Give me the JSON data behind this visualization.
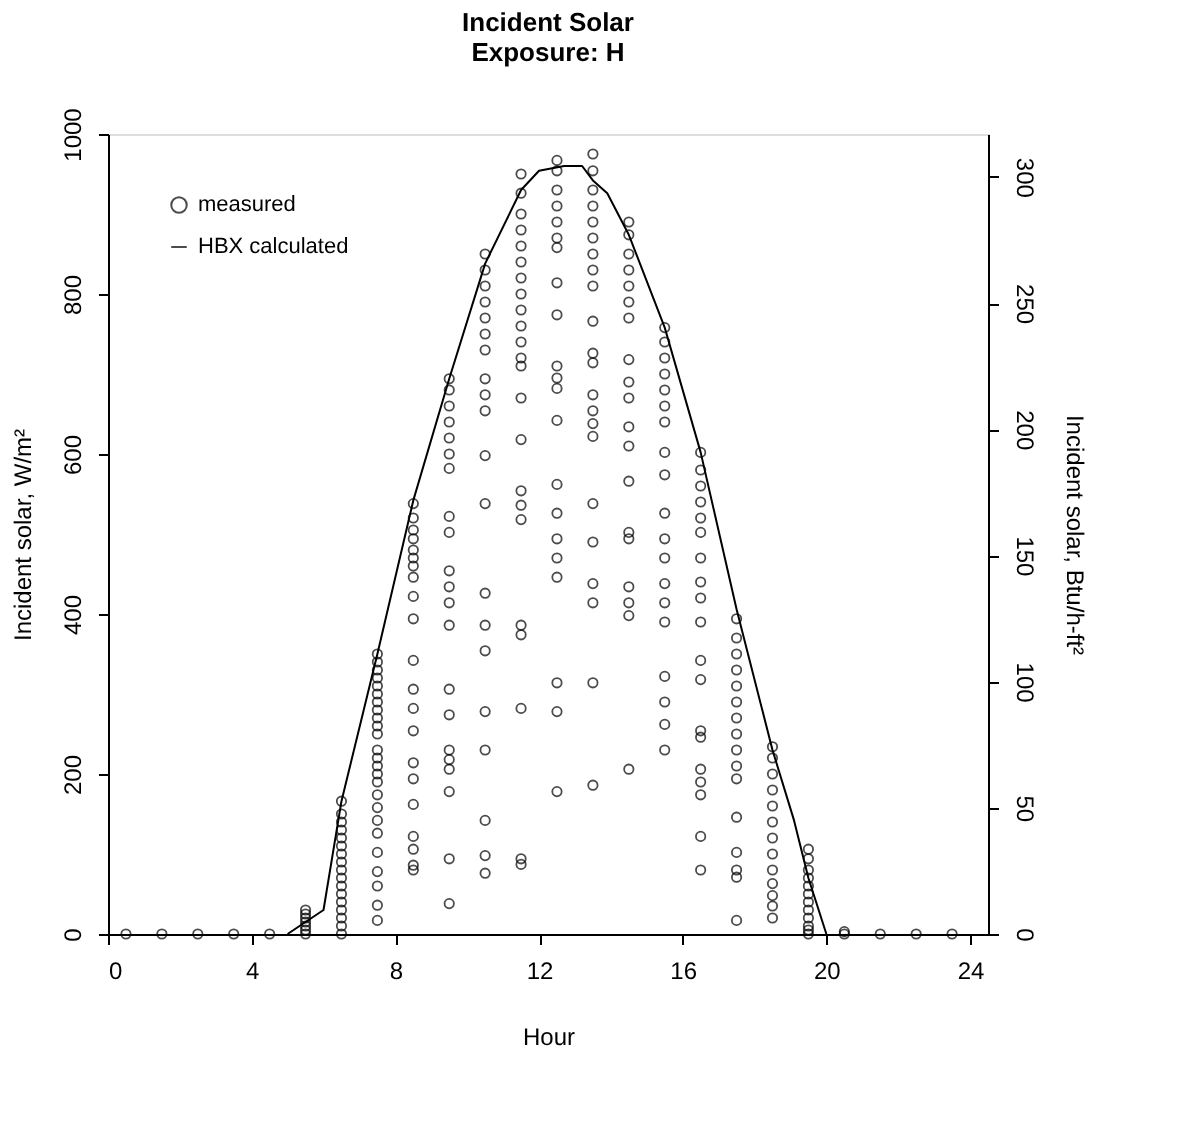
{
  "chart_data": {
    "type": "scatter",
    "title": "Incident Solar\nExposure: H",
    "xlabel": "Hour",
    "ylabel": "Incident solar, W/m²",
    "y2label": "Incident solar, Btu/h-ft²",
    "xlim": [
      0,
      24.5
    ],
    "xticks": [
      0,
      4,
      8,
      12,
      16,
      20,
      24
    ],
    "ylim": [
      0,
      1000
    ],
    "yticks": [
      0,
      200,
      400,
      600,
      800,
      1000
    ],
    "y2lim": [
      0,
      317
    ],
    "y2ticks": [
      0,
      50,
      100,
      150,
      200,
      250,
      300
    ],
    "grid": false,
    "legend": "top left",
    "series": [
      {
        "name": "measured",
        "marker": "circle",
        "color": "#000000",
        "x": [
          0.5,
          1.5,
          2.5,
          3.5,
          4.5,
          5.5,
          5.5,
          5.5,
          5.5,
          5.5,
          5.5,
          5.5,
          6.5,
          6.5,
          6.5,
          6.5,
          6.5,
          6.5,
          6.5,
          6.5,
          6.5,
          6.5,
          6.5,
          6.5,
          6.5,
          6.5,
          6.5,
          6.5,
          6.5,
          7.5,
          7.5,
          7.5,
          7.5,
          7.5,
          7.5,
          7.5,
          7.5,
          7.5,
          7.5,
          7.5,
          7.5,
          7.5,
          7.5,
          7.5,
          7.5,
          7.5,
          7.5,
          7.5,
          7.5,
          7.5,
          7.5,
          7.5,
          7.5,
          7.5,
          8.5,
          8.5,
          8.5,
          8.5,
          8.5,
          8.5,
          8.5,
          8.5,
          8.5,
          8.5,
          8.5,
          8.5,
          8.5,
          8.5,
          8.5,
          8.5,
          8.5,
          8.5,
          8.5,
          8.5,
          8.5,
          9.5,
          9.5,
          9.5,
          9.5,
          9.5,
          9.5,
          9.5,
          9.5,
          9.5,
          9.5,
          9.5,
          9.5,
          9.5,
          9.5,
          9.5,
          9.5,
          9.5,
          9.5,
          9.5,
          9.5,
          9.5,
          10.5,
          10.5,
          10.5,
          10.5,
          10.5,
          10.5,
          10.5,
          10.5,
          10.5,
          10.5,
          10.5,
          10.5,
          10.5,
          10.5,
          10.5,
          10.5,
          10.5,
          10.5,
          10.5,
          10.5,
          11.5,
          11.5,
          11.5,
          11.5,
          11.5,
          11.5,
          11.5,
          11.5,
          11.5,
          11.5,
          11.5,
          11.5,
          11.5,
          11.5,
          11.5,
          11.5,
          11.5,
          11.5,
          11.5,
          11.5,
          11.5,
          11.5,
          11.5,
          12.5,
          12.5,
          12.5,
          12.5,
          12.5,
          12.5,
          12.5,
          12.5,
          12.5,
          12.5,
          12.5,
          12.5,
          12.5,
          12.5,
          12.5,
          12.5,
          12.5,
          12.5,
          12.5,
          12.5,
          12.5,
          13.5,
          13.5,
          13.5,
          13.5,
          13.5,
          13.5,
          13.5,
          13.5,
          13.5,
          13.5,
          13.5,
          13.5,
          13.5,
          13.5,
          13.5,
          13.5,
          13.5,
          13.5,
          13.5,
          13.5,
          13.5,
          13.5,
          14.5,
          14.5,
          14.5,
          14.5,
          14.5,
          14.5,
          14.5,
          14.5,
          14.5,
          14.5,
          14.5,
          14.5,
          14.5,
          14.5,
          14.5,
          14.5,
          14.5,
          14.5,
          14.5,
          15.5,
          15.5,
          15.5,
          15.5,
          15.5,
          15.5,
          15.5,
          15.5,
          15.5,
          15.5,
          15.5,
          15.5,
          15.5,
          15.5,
          15.5,
          15.5,
          15.5,
          15.5,
          15.5,
          16.5,
          16.5,
          16.5,
          16.5,
          16.5,
          16.5,
          16.5,
          16.5,
          16.5,
          16.5,
          16.5,
          16.5,
          16.5,
          16.5,
          16.5,
          16.5,
          16.5,
          16.5,
          16.5,
          17.5,
          17.5,
          17.5,
          17.5,
          17.5,
          17.5,
          17.5,
          17.5,
          17.5,
          17.5,
          17.5,
          17.5,
          17.5,
          17.5,
          17.5,
          17.5,
          18.5,
          18.5,
          18.5,
          18.5,
          18.5,
          18.5,
          18.5,
          18.5,
          18.5,
          18.5,
          18.5,
          18.5,
          18.5,
          19.5,
          19.5,
          19.5,
          19.5,
          19.5,
          19.5,
          19.5,
          19.5,
          19.5,
          19.5,
          19.5,
          19.5,
          20.5,
          20.5,
          21.5,
          22.5,
          23.5
        ],
        "values": [
          0,
          0,
          0,
          0,
          0,
          0,
          5,
          10,
          15,
          20,
          25,
          30,
          0,
          10,
          20,
          30,
          40,
          50,
          60,
          70,
          80,
          90,
          100,
          110,
          120,
          130,
          140,
          150,
          166,
          17,
          36,
          60,
          78,
          102,
          126,
          142,
          158,
          174,
          190,
          200,
          210,
          220,
          230,
          250,
          260,
          270,
          280,
          290,
          300,
          310,
          320,
          330,
          340,
          350,
          80,
          86,
          106,
          122,
          162,
          194,
          214,
          254,
          282,
          306,
          342,
          394,
          422,
          446,
          460,
          470,
          480,
          494,
          505,
          520,
          538,
          38,
          94,
          178,
          206,
          218,
          230,
          274,
          306,
          386,
          414,
          434,
          454,
          502,
          522,
          582,
          600,
          620,
          640,
          660,
          680,
          694,
          76,
          98,
          142,
          230,
          278,
          354,
          386,
          426,
          538,
          598,
          654,
          674,
          694,
          730,
          750,
          770,
          790,
          810,
          830,
          850,
          87,
          94,
          282,
          374,
          386,
          518,
          536,
          554,
          618,
          670,
          710,
          720,
          740,
          760,
          780,
          800,
          820,
          840,
          860,
          880,
          900,
          926,
          950,
          178,
          278,
          314,
          446,
          470,
          494,
          526,
          562,
          642,
          682,
          695,
          710,
          774,
          814,
          858,
          870,
          890,
          910,
          930,
          954,
          967,
          186,
          314,
          414,
          438,
          490,
          538,
          622,
          638,
          654,
          674,
          714,
          726,
          766,
          810,
          830,
          850,
          870,
          890,
          910,
          930,
          954,
          975,
          206,
          398,
          414,
          434,
          494,
          502,
          566,
          610,
          634,
          670,
          690,
          718,
          770,
          790,
          810,
          830,
          850,
          874,
          890,
          230,
          262,
          290,
          322,
          390,
          414,
          438,
          470,
          494,
          526,
          574,
          602,
          640,
          660,
          680,
          700,
          720,
          740,
          758,
          80,
          122,
          174,
          190,
          206,
          246,
          254,
          318,
          342,
          390,
          420,
          440,
          470,
          502,
          520,
          540,
          560,
          580,
          602,
          17,
          71,
          80,
          102,
          146,
          194,
          210,
          230,
          250,
          270,
          290,
          310,
          330,
          350,
          370,
          394,
          20,
          35,
          48,
          63,
          80,
          100,
          120,
          140,
          160,
          180,
          200,
          220,
          234,
          0,
          5,
          10,
          20,
          30,
          40,
          50,
          60,
          70,
          80,
          94,
          106,
          0,
          3,
          0,
          0,
          0
        ]
      },
      {
        "name": "HBX calculated",
        "type": "line",
        "line_style": "solid",
        "color": "#000000",
        "x": [
          5,
          6,
          6.5,
          7.5,
          8.5,
          9.5,
          10.5,
          11.5,
          12,
          12.7,
          13.2,
          13.5,
          13.9,
          14.5,
          15.5,
          16.5,
          17.5,
          18.5,
          19.1,
          19.5,
          20
        ],
        "values": [
          0,
          30,
          166,
          350,
          542,
          694,
          838,
          930,
          954,
          960,
          960,
          942,
          926,
          874,
          758,
          602,
          406,
          230,
          142,
          70,
          0
        ]
      }
    ]
  }
}
